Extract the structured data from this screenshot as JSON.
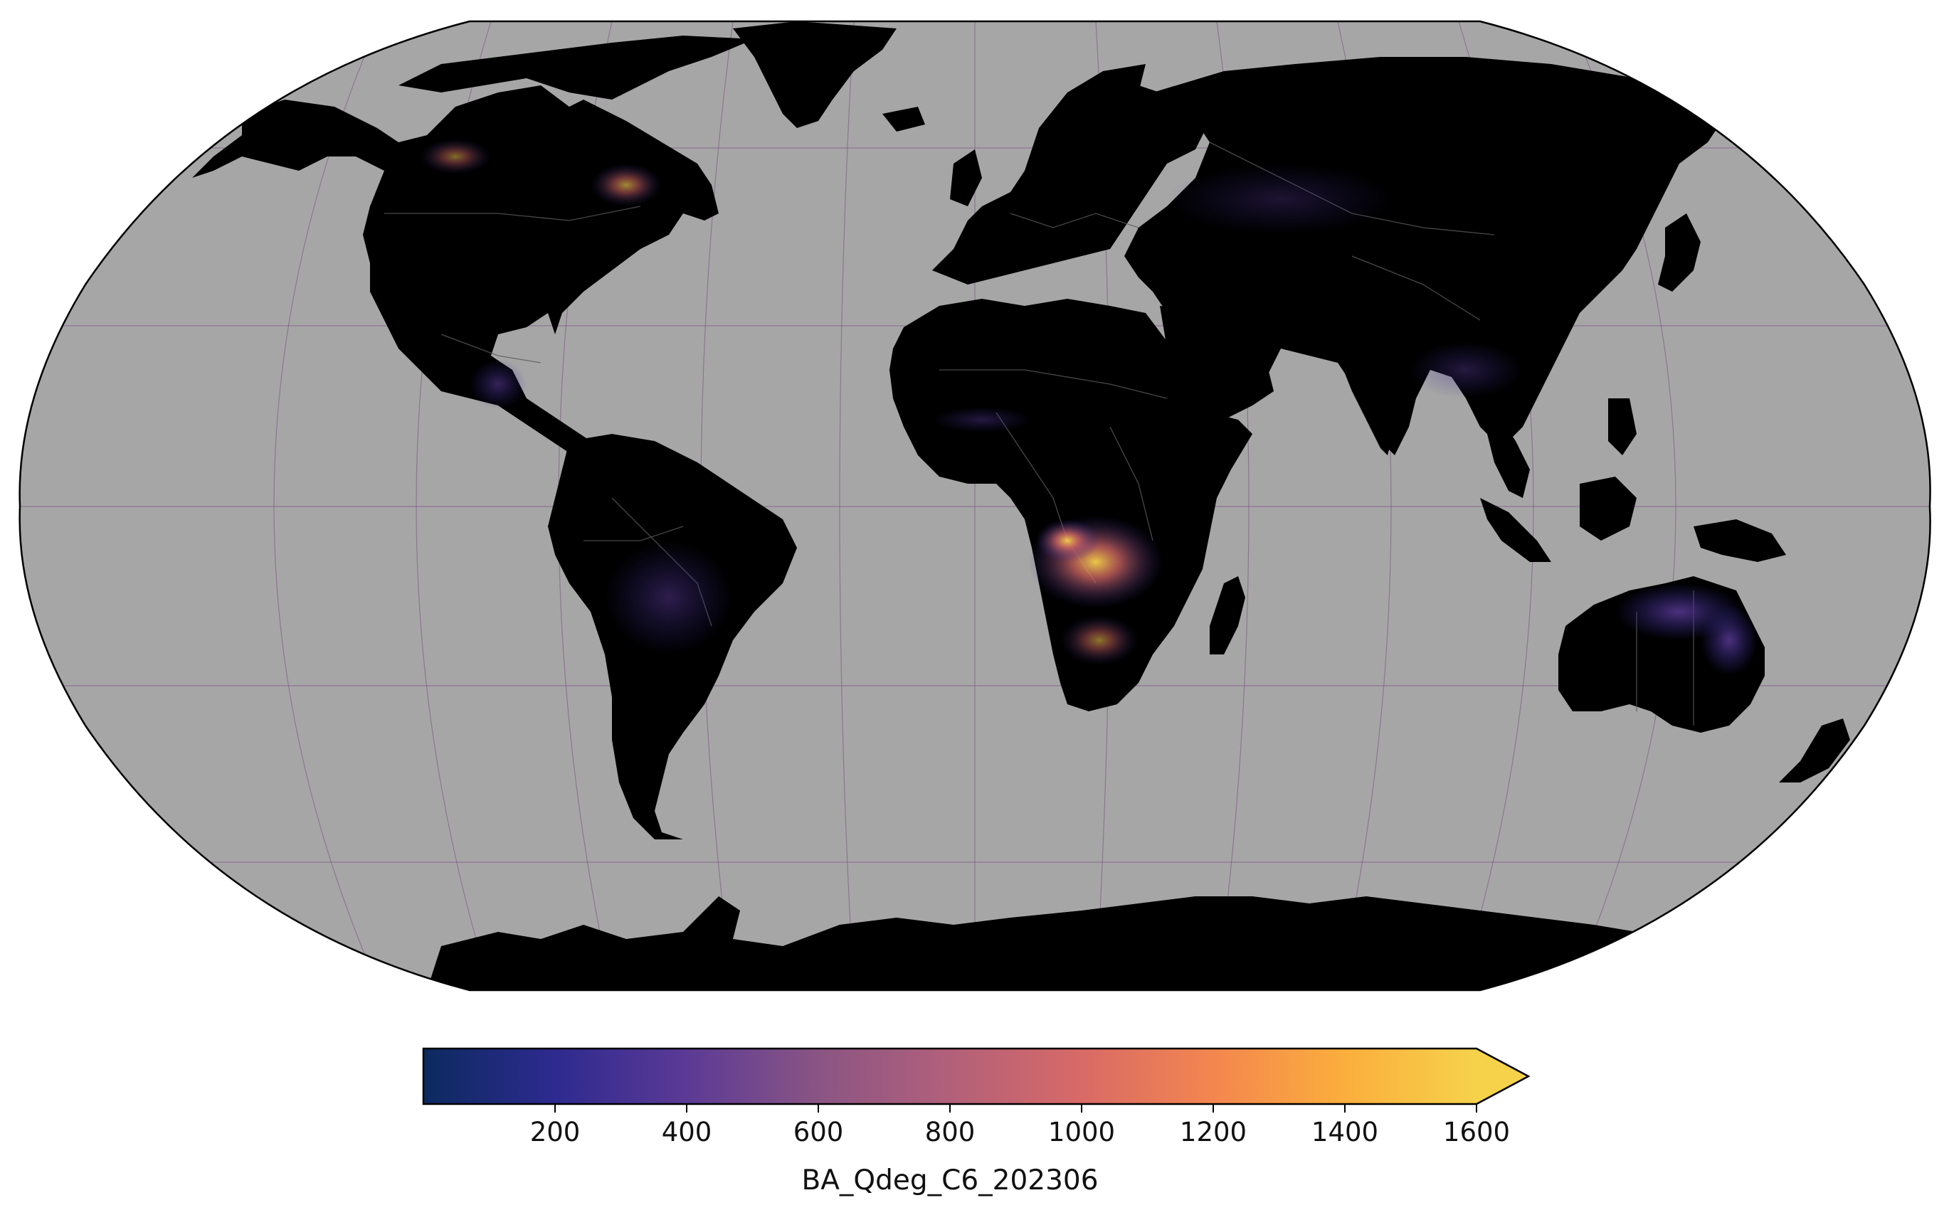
{
  "map": {
    "projection": "robinson",
    "ocean_color": "#a6a6a6",
    "land_color": "#000000",
    "border_color": "#5a5a5a",
    "graticule_color": "#7a4d82",
    "colormap": [
      "#0c2a5f",
      "#2e2a8f",
      "#5b3a95",
      "#8a5584",
      "#b2607a",
      "#d86a67",
      "#f3864f",
      "#fbae3d",
      "#f6d24b"
    ],
    "burn_hotspots": [
      {
        "region": "central-africa",
        "intensity": 0.45
      },
      {
        "region": "southern-africa",
        "intensity": 0.35
      },
      {
        "region": "canada",
        "intensity": 0.4
      },
      {
        "region": "northern-australia",
        "intensity": 0.2
      },
      {
        "region": "south-america",
        "intensity": 0.1
      },
      {
        "region": "siberia",
        "intensity": 0.08
      }
    ]
  },
  "colorbar": {
    "label": "BA_Qdeg_C6_202306",
    "ticks": [
      "200",
      "400",
      "600",
      "800",
      "1000",
      "1200",
      "1400",
      "1600"
    ],
    "tick_values": [
      200,
      400,
      600,
      800,
      1000,
      1200,
      1400,
      1600
    ],
    "min": 0,
    "max": 1600,
    "extend": "max"
  }
}
